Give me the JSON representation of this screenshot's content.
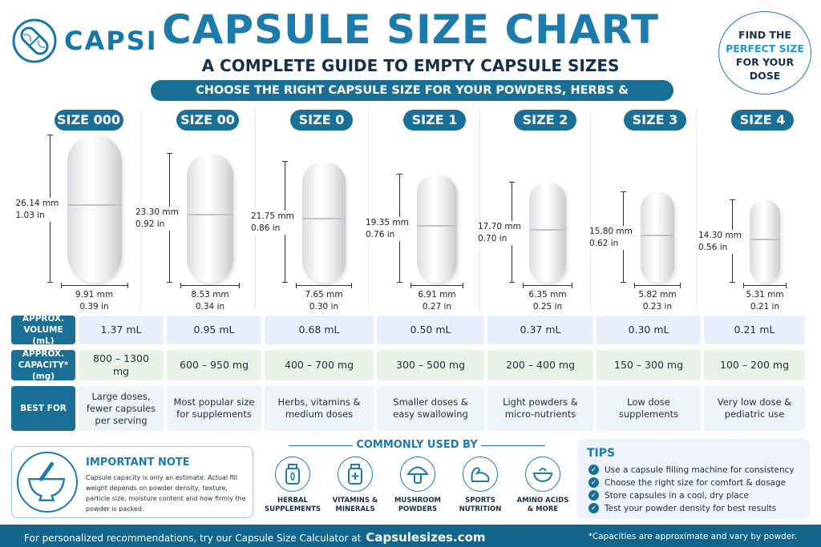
{
  "brand": {
    "name": "CAPSI"
  },
  "title": "CAPSULE SIZE CHART",
  "subtitle": "A COMPLETE GUIDE TO EMPTY CAPSULE SIZES",
  "banner": "CHOOSE THE RIGHT CAPSULE SIZE FOR YOUR POWDERS, HERBS & SUPPLEMENTS",
  "find": {
    "l1": "FIND THE",
    "l2": "PERFECT SIZE",
    "l3": "FOR YOUR",
    "l4": "DOSE"
  },
  "row_labels": {
    "volume": "APPROX. VOLUME (mL)",
    "capacity": "APPROX. CAPACITY* (mg)",
    "best": "BEST FOR"
  },
  "sizes": [
    {
      "name": "SIZE 000",
      "len_mm": "26.14 mm",
      "len_in": "1.03 in",
      "dia_mm": "9.91 mm",
      "dia_in": "0.39 in",
      "volume": "1.37 mL",
      "capacity": "800 – 1300 mg",
      "best": "Large doses, fewer capsules per serving"
    },
    {
      "name": "SIZE 00",
      "len_mm": "23.30 mm",
      "len_in": "0.92 in",
      "dia_mm": "8.53 mm",
      "dia_in": "0.34 in",
      "volume": "0.95 mL",
      "capacity": "600 – 950 mg",
      "best": "Most popular size for supplements"
    },
    {
      "name": "SIZE 0",
      "len_mm": "21.75 mm",
      "len_in": "0.86 in",
      "dia_mm": "7.65 mm",
      "dia_in": "0.30 in",
      "volume": "0.68 mL",
      "capacity": "400 – 700 mg",
      "best": "Herbs, vitamins & medium doses"
    },
    {
      "name": "SIZE 1",
      "len_mm": "19.35 mm",
      "len_in": "0.76 in",
      "dia_mm": "6.91 mm",
      "dia_in": "0.27 in",
      "volume": "0.50 mL",
      "capacity": "300 – 500 mg",
      "best": "Smaller doses & easy swallowing"
    },
    {
      "name": "SIZE 2",
      "len_mm": "17.70 mm",
      "len_in": "0.70 in",
      "dia_mm": "6.35 mm",
      "dia_in": "0.25 in",
      "volume": "0.37 mL",
      "capacity": "200 – 400 mg",
      "best": "Light powders & micro-nutrients"
    },
    {
      "name": "SIZE 3",
      "len_mm": "15.80 mm",
      "len_in": "0.62 in",
      "dia_mm": "5.82 mm",
      "dia_in": "0.23 in",
      "volume": "0.30 mL",
      "capacity": "150 – 300 mg",
      "best": "Low dose supplements"
    },
    {
      "name": "SIZE 4",
      "len_mm": "14.30 mm",
      "len_in": "0.56 in",
      "dia_mm": "5.31 mm",
      "dia_in": "0.21 in",
      "volume": "0.21 mL",
      "capacity": "100 – 200 mg",
      "best": "Very low dose & pediatric use"
    }
  ],
  "note": {
    "title": "IMPORTANT NOTE",
    "text": "Capsule capacity is only an estimate. Actual fill weight depends on powder density, texture, particle size, moisture content and how firmly the powder is packed."
  },
  "common": {
    "title": "COMMONLY USED BY",
    "items": [
      {
        "label": "HERBAL SUPPLEMENTS",
        "icon": "herbal-bottle-icon"
      },
      {
        "label": "VITAMINS & MINERALS",
        "icon": "vitamin-bottle-icon"
      },
      {
        "label": "MUSHROOM POWDERS",
        "icon": "mushroom-icon"
      },
      {
        "label": "SPORTS NUTRITION",
        "icon": "flexed-arm-icon"
      },
      {
        "label": "AMINO ACIDS & MORE",
        "icon": "bowl-icon"
      }
    ]
  },
  "tips": {
    "title": "TIPS",
    "items": [
      "Use a capsule filling machine for consistency",
      "Choose the right size for comfort & dosage",
      "Store capsules in a cool, dry place",
      "Test your powder density for best results"
    ]
  },
  "footer": {
    "text": "For personalized recommendations, try our Capsule Size Calculator at",
    "site": "Capsulesizes.com",
    "disclaimer": "*Capacities are approximate and vary by powder."
  }
}
